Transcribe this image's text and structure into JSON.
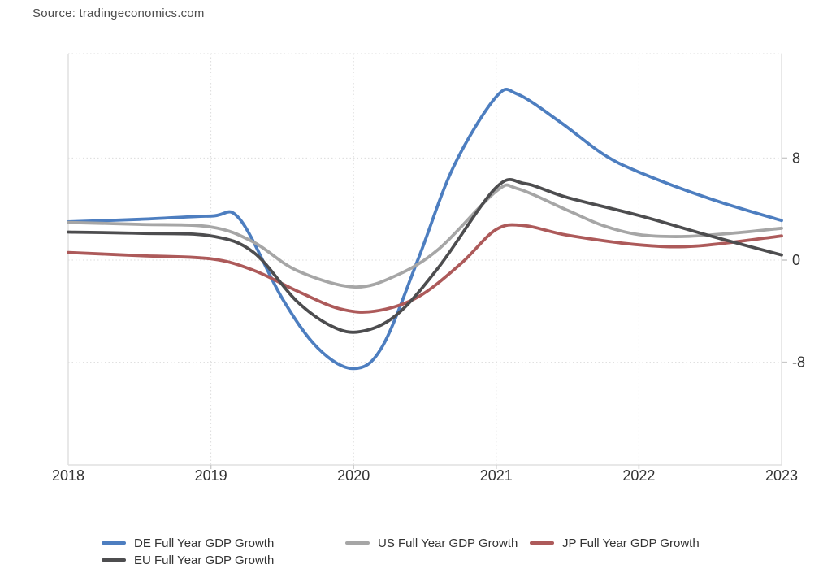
{
  "source": {
    "label": "Source: tradingeconomics.com"
  },
  "chart_data": {
    "type": "line",
    "title": "",
    "xlabel": "",
    "ylabel": "",
    "x_ticks": [
      2018,
      2019,
      2020,
      2021,
      2022,
      2023
    ],
    "x_range": [
      2018,
      2023
    ],
    "y_ticks": [
      {
        "label": "8",
        "value": 8
      },
      {
        "label": "0",
        "value": 0
      },
      {
        "label": "-8",
        "value": -8
      }
    ],
    "ylim": [
      -16,
      16.2
    ],
    "grid": "dotted",
    "legend_position": "bottom",
    "series": [
      {
        "name": "DE Full Year GDP Growth",
        "color": "#4d7ec0",
        "points": [
          [
            2018,
            3.0
          ],
          [
            2018.5,
            3.2
          ],
          [
            2019,
            3.45
          ],
          [
            2019.2,
            3.25
          ],
          [
            2019.5,
            -3.0
          ],
          [
            2019.75,
            -6.9
          ],
          [
            2020,
            -8.5
          ],
          [
            2020.2,
            -6.8
          ],
          [
            2020.45,
            0.0
          ],
          [
            2020.7,
            7.3
          ],
          [
            2021,
            12.8
          ],
          [
            2021.15,
            13.0
          ],
          [
            2021.45,
            10.8
          ],
          [
            2021.75,
            8.3
          ],
          [
            2022,
            6.9
          ],
          [
            2022.5,
            4.8
          ],
          [
            2023,
            3.1
          ]
        ]
      },
      {
        "name": "US Full Year GDP Growth",
        "color": "#a6a6a6",
        "points": [
          [
            2018,
            2.95
          ],
          [
            2018.5,
            2.8
          ],
          [
            2019,
            2.6
          ],
          [
            2019.3,
            1.4
          ],
          [
            2019.6,
            -0.8
          ],
          [
            2020,
            -2.1
          ],
          [
            2020.3,
            -1.2
          ],
          [
            2020.6,
            0.9
          ],
          [
            2021,
            5.4
          ],
          [
            2021.15,
            5.6
          ],
          [
            2021.5,
            3.9
          ],
          [
            2021.75,
            2.7
          ],
          [
            2022,
            2.0
          ],
          [
            2022.3,
            1.85
          ],
          [
            2022.65,
            2.1
          ],
          [
            2023,
            2.5
          ]
        ]
      },
      {
        "name": "JP Full Year GDP Growth",
        "color": "#ad5a5a",
        "points": [
          [
            2018,
            0.6
          ],
          [
            2018.5,
            0.35
          ],
          [
            2019,
            0.1
          ],
          [
            2019.3,
            -0.8
          ],
          [
            2019.6,
            -2.4
          ],
          [
            2019.9,
            -3.8
          ],
          [
            2020.15,
            -4.0
          ],
          [
            2020.45,
            -2.9
          ],
          [
            2020.75,
            -0.3
          ],
          [
            2021,
            2.4
          ],
          [
            2021.2,
            2.7
          ],
          [
            2021.5,
            1.95
          ],
          [
            2022,
            1.2
          ],
          [
            2022.4,
            1.1
          ],
          [
            2023,
            1.9
          ]
        ]
      },
      {
        "name": "EU Full Year GDP Growth",
        "color": "#4d4d4f",
        "points": [
          [
            2018,
            2.2
          ],
          [
            2018.5,
            2.1
          ],
          [
            2019,
            1.9
          ],
          [
            2019.3,
            0.6
          ],
          [
            2019.6,
            -3.2
          ],
          [
            2019.85,
            -5.2
          ],
          [
            2020.05,
            -5.6
          ],
          [
            2020.3,
            -4.3
          ],
          [
            2020.6,
            -0.5
          ],
          [
            2021,
            5.7
          ],
          [
            2021.2,
            6.0
          ],
          [
            2021.5,
            4.9
          ],
          [
            2022,
            3.5
          ],
          [
            2022.5,
            1.9
          ],
          [
            2023,
            0.4
          ]
        ]
      }
    ]
  },
  "legend": {
    "items": [
      {
        "label": "DE Full Year GDP Growth",
        "color": "#4d7ec0"
      },
      {
        "label": "US Full Year GDP Growth",
        "color": "#a6a6a6"
      },
      {
        "label": "JP Full Year GDP Growth",
        "color": "#ad5a5a"
      },
      {
        "label": "EU Full Year GDP Growth",
        "color": "#4d4d4f"
      }
    ]
  },
  "colors": {
    "background": "#ffffff",
    "axis_line": "#e0e0e0",
    "grid_line": "#dcdcdc",
    "tick_mark": "#c9c9c9",
    "tick_label": "#333333",
    "source_text": "#4d4d4d"
  }
}
